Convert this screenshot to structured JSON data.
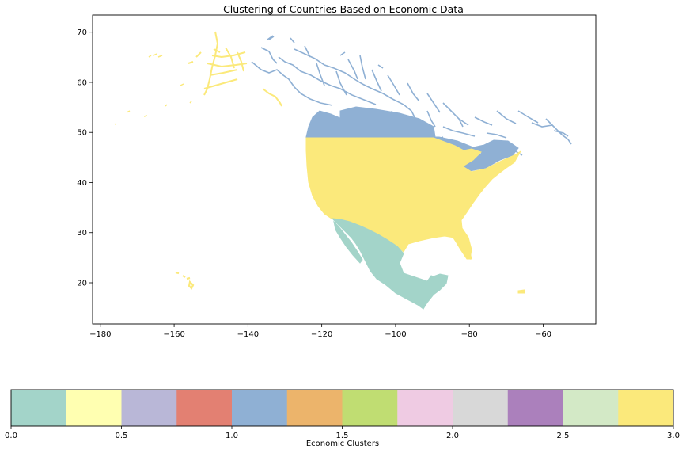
{
  "title": "Clustering of Countries Based on Economic Data",
  "map": {
    "x_ticks": [
      "−180",
      "−160",
      "−140",
      "−120",
      "−100",
      "−80",
      "−60"
    ],
    "y_ticks": [
      "20",
      "30",
      "40",
      "50",
      "60",
      "70"
    ],
    "region_colors": {
      "canada": "#8fb0d4",
      "united_states": "#fbe97b",
      "mexico": "#a3d4c9"
    },
    "regions": [
      "canada",
      "united_states",
      "mexico",
      "alaska",
      "hawaii",
      "puerto_rico"
    ]
  },
  "colorbar": {
    "label": "Economic Clusters",
    "colors": [
      "#a3d4c9",
      "#ffffb1",
      "#b9b7d7",
      "#e38072",
      "#8fb0d4",
      "#ecb46b",
      "#c0dd72",
      "#efcbe3",
      "#d8d8d8",
      "#ab80bc",
      "#d3e9c6",
      "#fbe97b"
    ],
    "ticks": [
      "0.0",
      "0.5",
      "1.0",
      "1.5",
      "2.0",
      "2.5",
      "3.0"
    ]
  }
}
